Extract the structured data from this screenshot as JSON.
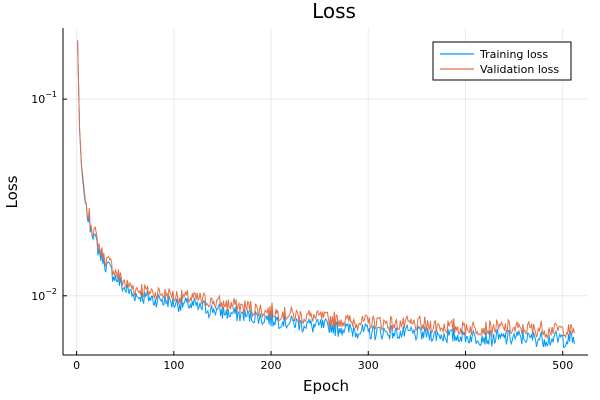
{
  "chart_data": {
    "type": "line",
    "title": "Loss",
    "xlabel": "Epoch",
    "ylabel": "Loss",
    "yscale": "log",
    "xlim": [
      -14,
      526
    ],
    "ylim": [
      0.005,
      0.23
    ],
    "xticks": [
      0,
      100,
      200,
      300,
      400,
      500
    ],
    "xtick_labels": [
      "0",
      "100",
      "200",
      "300",
      "400",
      "500"
    ],
    "yticks": [
      0.1,
      0.01
    ],
    "ytick_labels": [
      {
        "base": "10",
        "exp": "−1"
      },
      {
        "base": "10",
        "exp": "−2"
      }
    ],
    "grid": true,
    "legend_position": "top-right",
    "epochs": 512,
    "series": [
      {
        "name": "Training loss",
        "color": "#009af9",
        "anchors": [
          [
            1,
            0.2
          ],
          [
            3,
            0.07
          ],
          [
            5,
            0.045
          ],
          [
            8,
            0.032
          ],
          [
            12,
            0.025
          ],
          [
            18,
            0.02
          ],
          [
            25,
            0.016
          ],
          [
            30,
            0.0145
          ],
          [
            40,
            0.0125
          ],
          [
            50,
            0.0108
          ],
          [
            60,
            0.0101
          ],
          [
            75,
            0.0097
          ],
          [
            100,
            0.0093
          ],
          [
            125,
            0.0088
          ],
          [
            150,
            0.0083
          ],
          [
            175,
            0.0079
          ],
          [
            200,
            0.0076
          ],
          [
            225,
            0.0073
          ],
          [
            250,
            0.007
          ],
          [
            275,
            0.0068
          ],
          [
            300,
            0.0066
          ],
          [
            350,
            0.0064
          ],
          [
            400,
            0.0062
          ],
          [
            450,
            0.0061
          ],
          [
            512,
            0.006
          ]
        ]
      },
      {
        "name": "Validation loss",
        "color": "#e26f46",
        "anchors": [
          [
            1,
            0.2
          ],
          [
            3,
            0.072
          ],
          [
            5,
            0.047
          ],
          [
            8,
            0.033
          ],
          [
            12,
            0.026
          ],
          [
            18,
            0.021
          ],
          [
            25,
            0.017
          ],
          [
            30,
            0.0153
          ],
          [
            40,
            0.0133
          ],
          [
            50,
            0.0116
          ],
          [
            60,
            0.0109
          ],
          [
            75,
            0.0105
          ],
          [
            100,
            0.0101
          ],
          [
            125,
            0.0096
          ],
          [
            150,
            0.0091
          ],
          [
            175,
            0.0087
          ],
          [
            200,
            0.0083
          ],
          [
            225,
            0.008
          ],
          [
            250,
            0.0077
          ],
          [
            275,
            0.0075
          ],
          [
            300,
            0.0073
          ],
          [
            350,
            0.0071
          ],
          [
            400,
            0.0069
          ],
          [
            450,
            0.0068
          ],
          [
            512,
            0.0067
          ]
        ]
      }
    ]
  }
}
